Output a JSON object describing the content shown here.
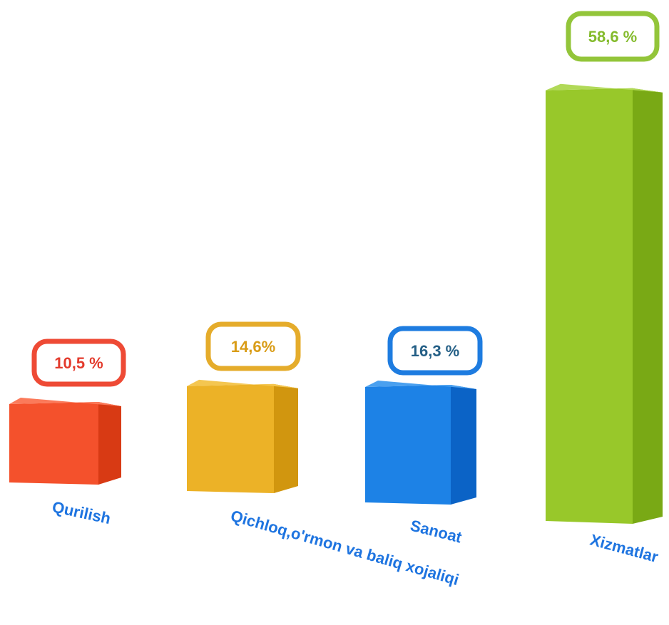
{
  "chart_data": {
    "type": "bar",
    "categories": [
      "Qurilish",
      "Qichloq,o'rmon va baliq xojaliqi",
      "Sanoat",
      "Xizmatlar"
    ],
    "values": [
      10.5,
      14.6,
      16.3,
      58.6
    ],
    "value_labels": [
      "10,5 %",
      "14,6%",
      "16,3 %",
      "58,6 %"
    ],
    "colors": [
      {
        "front": "#f4512c",
        "side": "#d83a14",
        "top": "#fb7a5a",
        "label_border": "#ee4a35",
        "label_text": "#e33a2c"
      },
      {
        "front": "#ecb227",
        "side": "#d1960f",
        "top": "#f4c650",
        "label_border": "#e5ac2b",
        "label_text": "#d99c17"
      },
      {
        "front": "#1d82e6",
        "side": "#0b63c6",
        "top": "#4aa0ef",
        "label_border": "#1e7ce0",
        "label_text": "#245f86"
      },
      {
        "front": "#98c82a",
        "side": "#79a915",
        "top": "#b1d958",
        "label_border": "#93c53a",
        "label_text": "#84bb2c"
      }
    ],
    "category_label_color": "#1e74e0",
    "axes": "none",
    "grid": false,
    "legend": "none"
  }
}
